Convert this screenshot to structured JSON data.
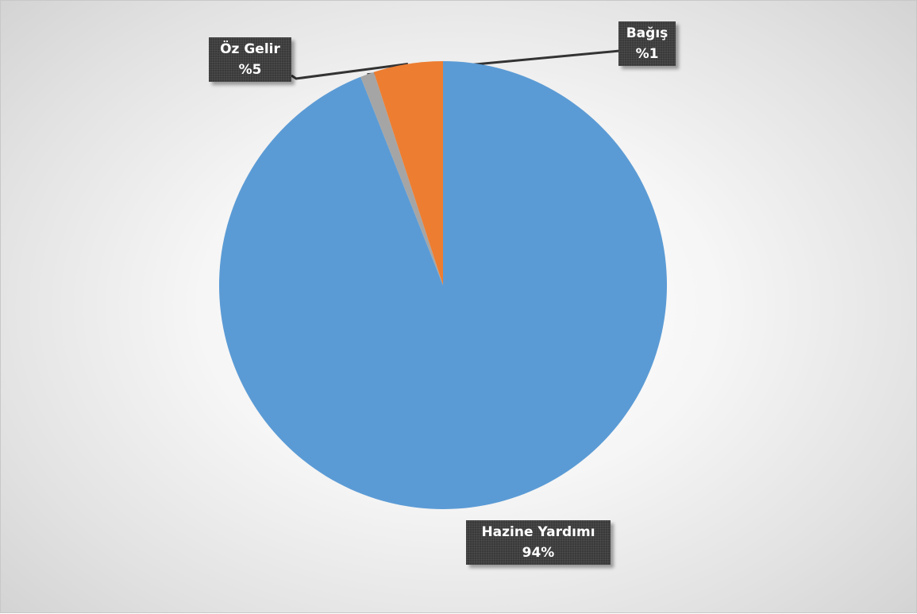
{
  "chart_data": {
    "type": "pie",
    "start_angle_deg": 0,
    "direction": "clockwise",
    "slices": [
      {
        "name": "Hazine Yardımı",
        "value": 94,
        "label": "94%",
        "color": "#5b9bd5"
      },
      {
        "name": "Bağış",
        "value": 1,
        "label": "%1",
        "color": "#a5a5a5"
      },
      {
        "name": "Öz Gelir",
        "value": 5,
        "label": "%5",
        "color": "#ed7d31"
      }
    ]
  }
}
